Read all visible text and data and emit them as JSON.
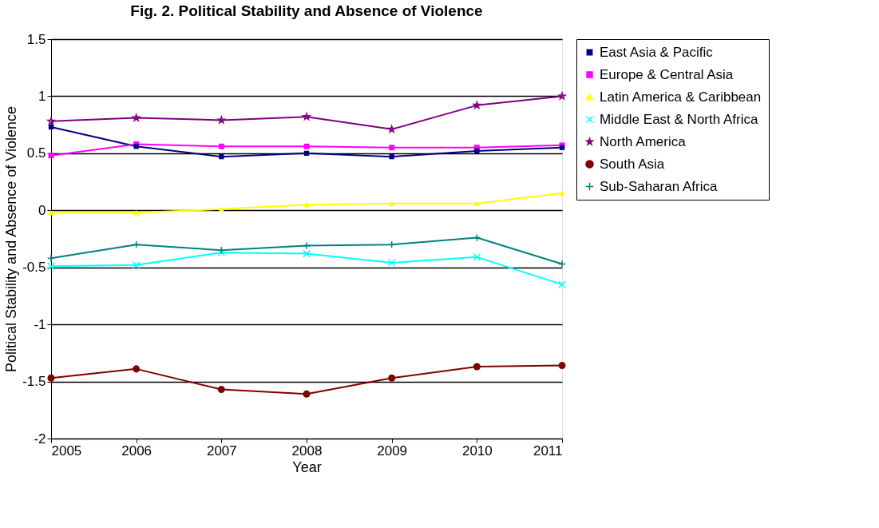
{
  "chart_data": {
    "type": "line",
    "title": "Fig. 2. Political Stability and Absence of Violence",
    "xlabel": "Year",
    "ylabel": "Political Stability and Absence of Violence",
    "categories": [
      "2005",
      "2006",
      "2007",
      "2008",
      "2009",
      "2010",
      "2011"
    ],
    "series": [
      {
        "name": "East Asia & Pacific",
        "color": "#000080",
        "marker": "square",
        "values": [
          0.73,
          0.56,
          0.47,
          0.5,
          0.47,
          0.52,
          0.55
        ]
      },
      {
        "name": "Europe & Central Asia",
        "color": "#ff00ff",
        "marker": "square",
        "values": [
          0.48,
          0.58,
          0.56,
          0.56,
          0.55,
          0.55,
          0.57
        ]
      },
      {
        "name": "Latin America & Caribbean",
        "color": "#ffff00",
        "marker": "triangle",
        "values": [
          -0.02,
          -0.02,
          0.01,
          0.05,
          0.06,
          0.06,
          0.15
        ]
      },
      {
        "name": "Middle East & North Africa",
        "color": "#00ffff",
        "marker": "cross",
        "values": [
          -0.49,
          -0.48,
          -0.37,
          -0.38,
          -0.46,
          -0.41,
          -0.65
        ]
      },
      {
        "name": "North America",
        "color": "#800080",
        "marker": "star",
        "values": [
          0.78,
          0.81,
          0.79,
          0.82,
          0.71,
          0.92,
          1.0
        ]
      },
      {
        "name": "South Asia",
        "color": "#800000",
        "marker": "circle",
        "values": [
          -1.47,
          -1.39,
          -1.57,
          -1.61,
          -1.47,
          -1.37,
          -1.36
        ]
      },
      {
        "name": "Sub-Saharan Africa",
        "color": "#008080",
        "marker": "plus",
        "values": [
          -0.42,
          -0.3,
          -0.35,
          -0.31,
          -0.3,
          -0.24,
          -0.47
        ]
      }
    ],
    "ylim": [
      -2,
      1.5
    ],
    "yticks": [
      -2,
      -1.5,
      -1,
      -0.5,
      0,
      0.5,
      1,
      1.5
    ],
    "grid": "y",
    "legend": "right",
    "line_style": "solid"
  }
}
